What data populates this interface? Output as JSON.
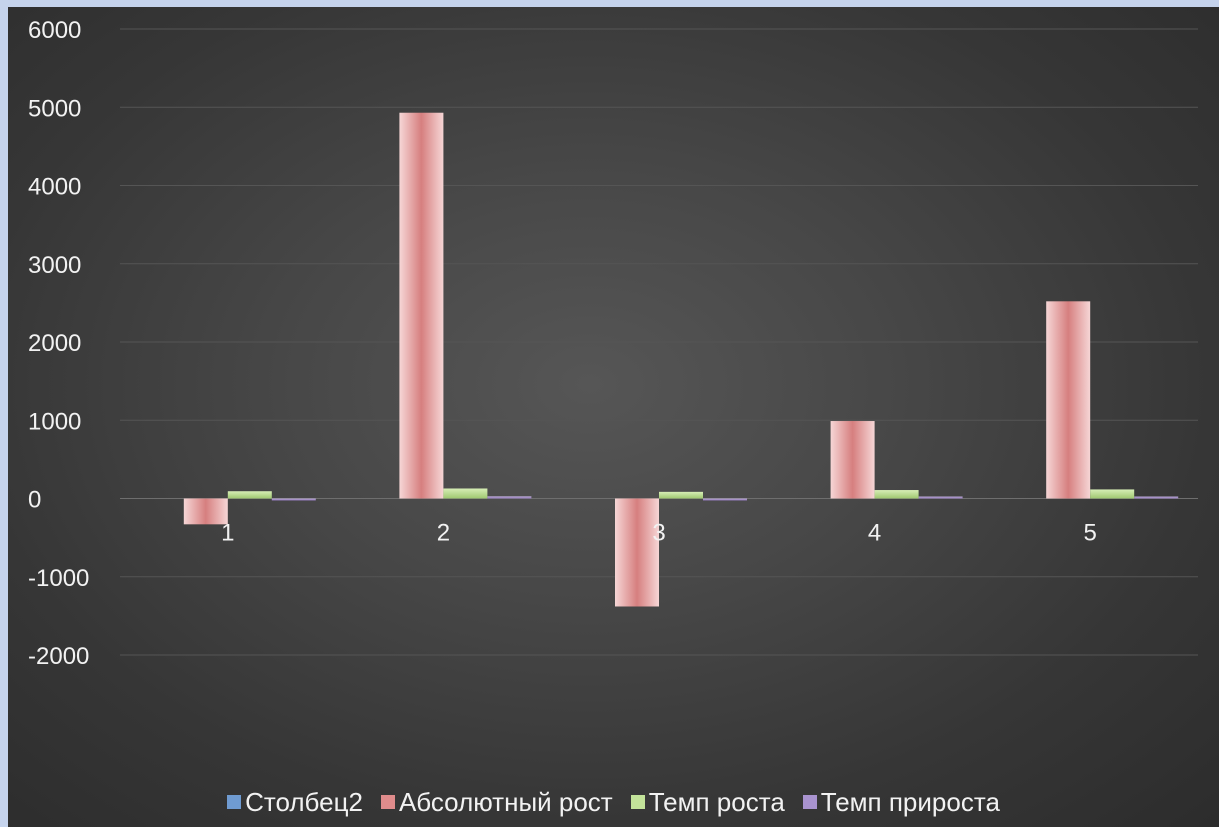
{
  "chart_data": {
    "type": "bar",
    "title": "",
    "xlabel": "",
    "ylabel": "",
    "categories": [
      "1",
      "2",
      "3",
      "4",
      "5"
    ],
    "ylim": [
      -2000,
      6000
    ],
    "yticks": [
      6000,
      5000,
      4000,
      3000,
      2000,
      1000,
      0,
      -1000,
      -2000
    ],
    "grid": true,
    "legend_position": "bottom",
    "series": [
      {
        "name": "Столбец2",
        "color": "#4f81bd",
        "values": [
          0,
          0,
          0,
          0,
          0
        ]
      },
      {
        "name": "Абсолютный рост",
        "color": "#d98c8c",
        "values": [
          -330,
          4930,
          -1380,
          990,
          2520
        ]
      },
      {
        "name": "Темп роста",
        "color": "#b5d98a",
        "values": [
          93,
          128,
          85,
          108,
          116
        ]
      },
      {
        "name": "Темп прироста",
        "color": "#9b82c0",
        "values": [
          -7,
          28,
          -15,
          8,
          16
        ]
      }
    ]
  }
}
